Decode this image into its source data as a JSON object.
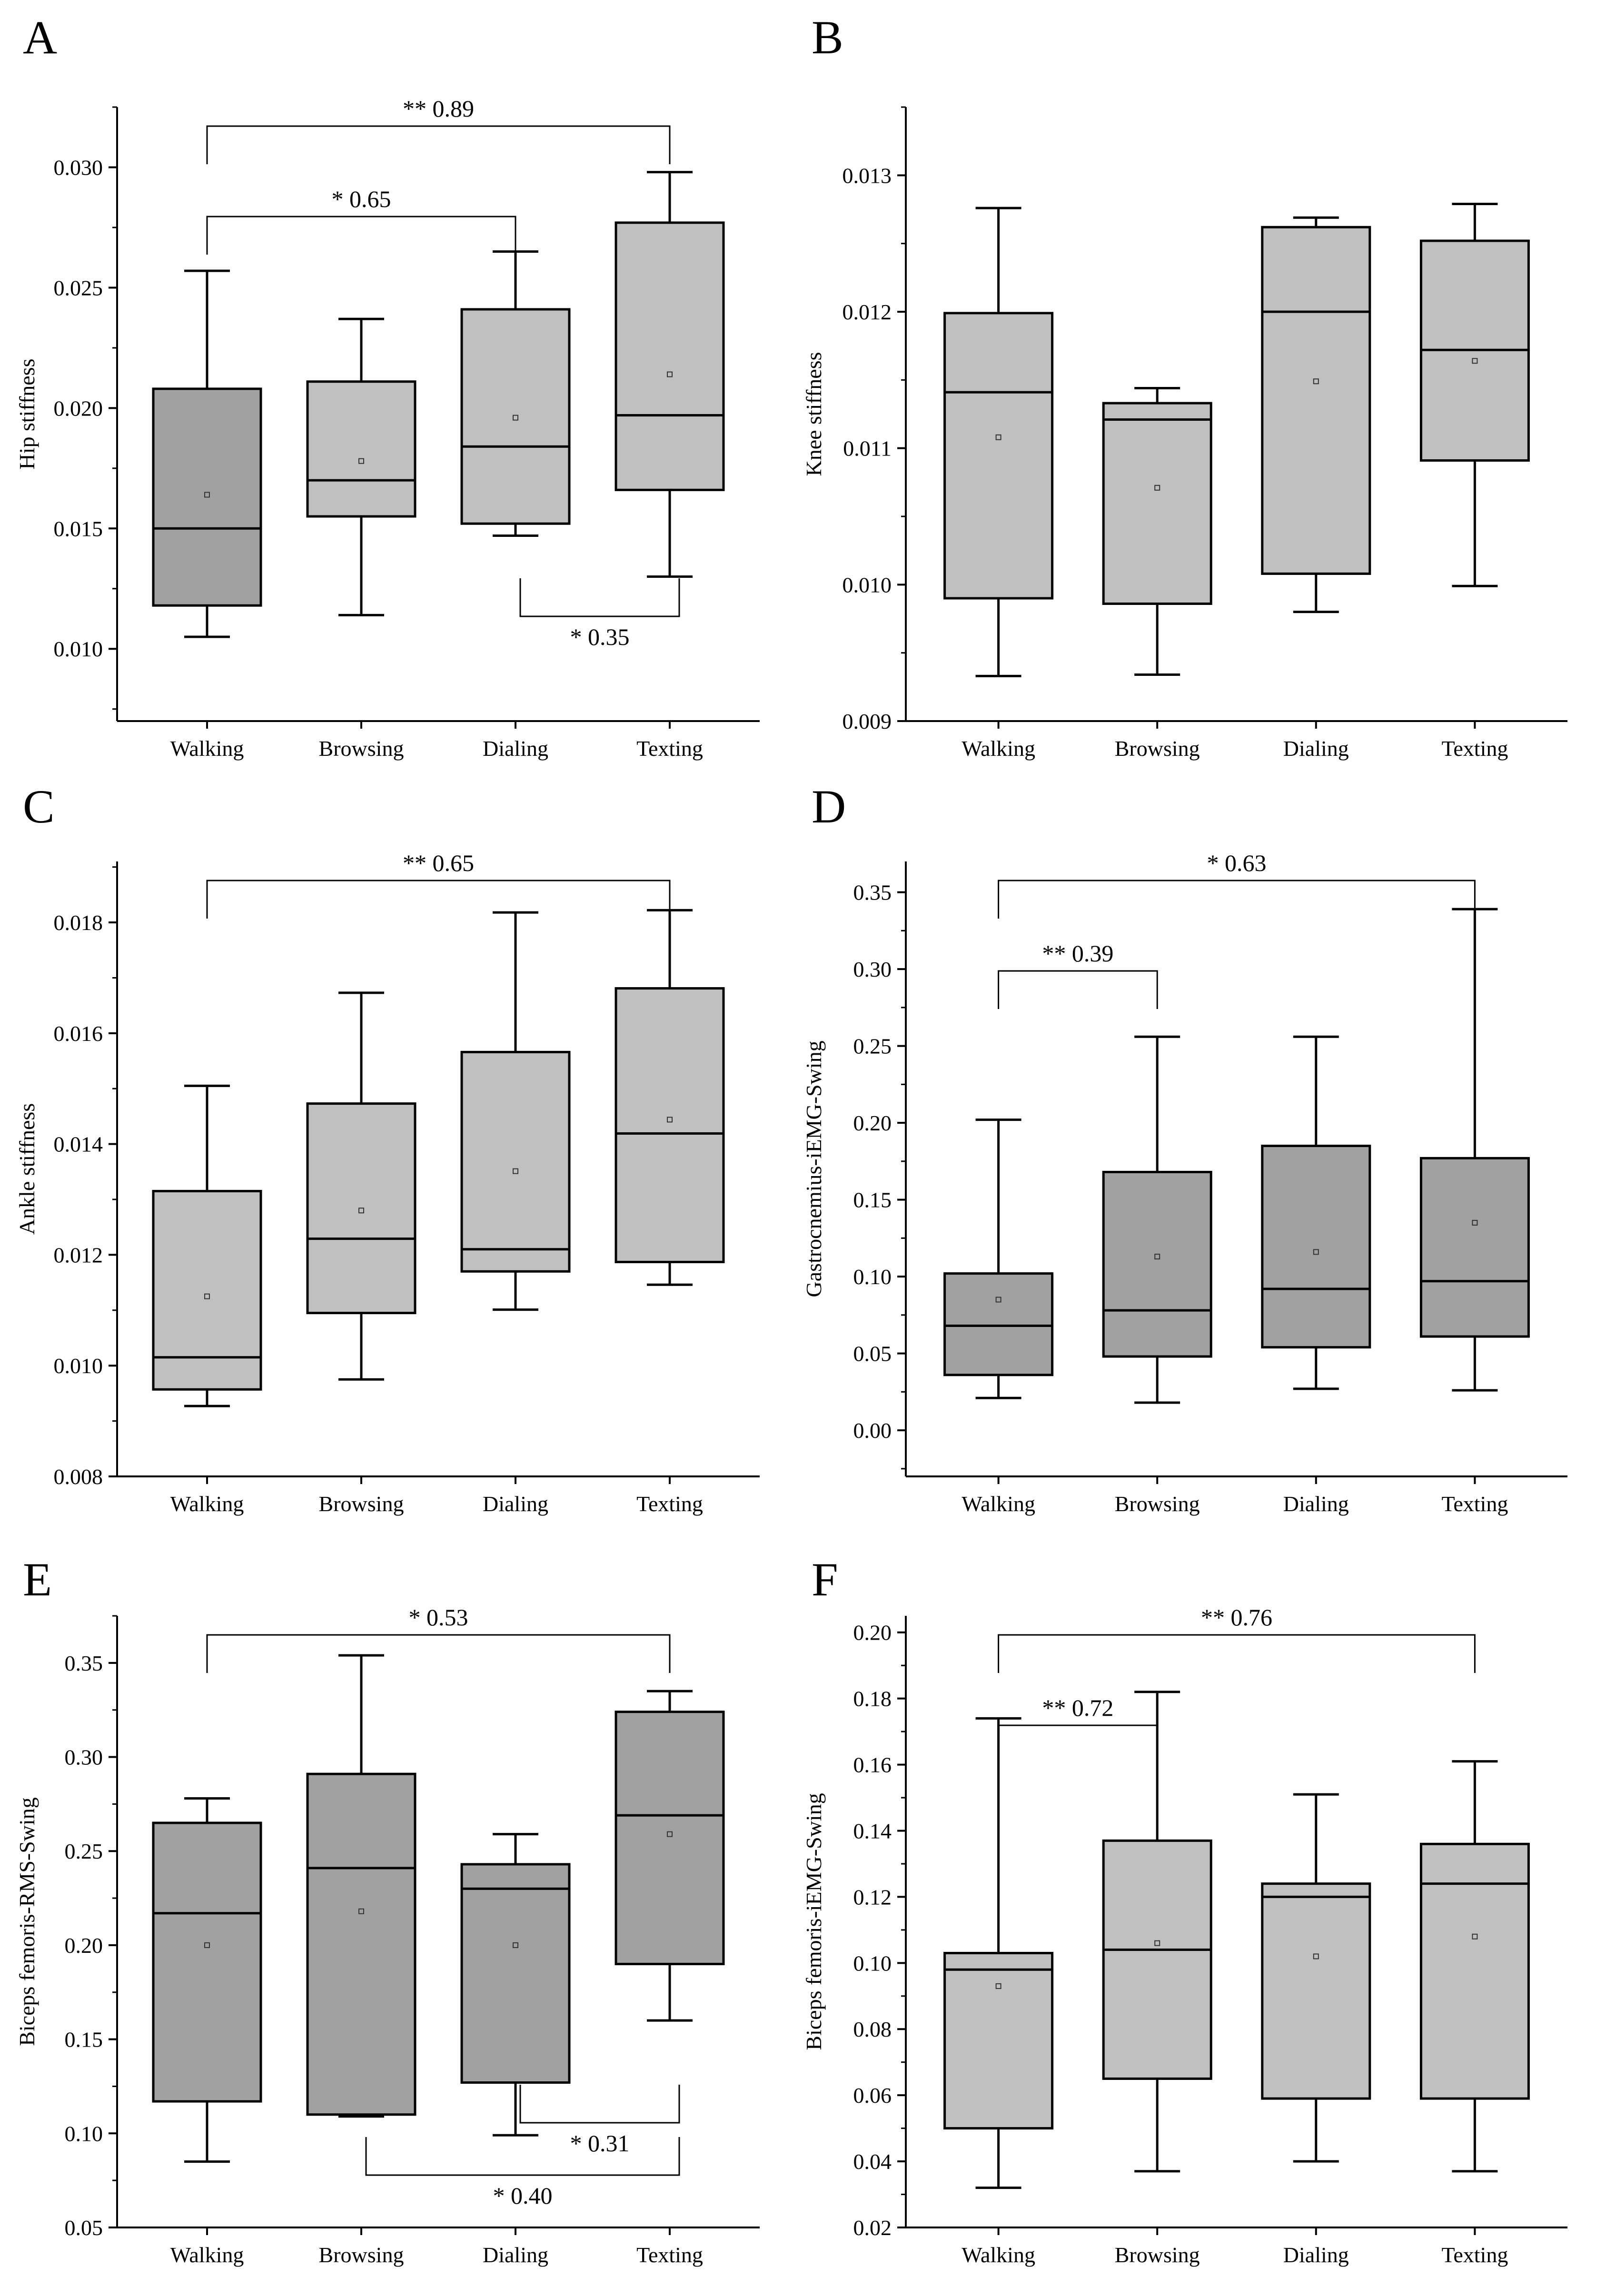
{
  "figure_title": "",
  "chart_data": [
    {
      "type": "box",
      "panel": "A",
      "title": "",
      "xlabel": "",
      "ylabel": "Hip stiffness",
      "categories": [
        "Walking",
        "Browsing",
        "Dialing",
        "Texting"
      ],
      "ylim": [
        0.007,
        0.0325
      ],
      "yticks": [
        0.01,
        0.015,
        0.02,
        0.025,
        0.03
      ],
      "ytick_labels": [
        "0.010",
        "0.015",
        "0.020",
        "0.025",
        "0.030"
      ],
      "box_colors": [
        "#a1a1a1",
        "#c0c0c0",
        "#c0c0c0",
        "#c0c0c0"
      ],
      "boxes": [
        {
          "category": "Walking",
          "whisker_low": 0.0105,
          "q1": 0.0118,
          "median": 0.015,
          "q3": 0.0208,
          "whisker_high": 0.0257,
          "mean": 0.0164
        },
        {
          "category": "Browsing",
          "whisker_low": 0.0114,
          "q1": 0.0155,
          "median": 0.017,
          "q3": 0.0211,
          "whisker_high": 0.0237,
          "mean": 0.0178
        },
        {
          "category": "Dialing",
          "whisker_low": 0.0147,
          "q1": 0.0152,
          "median": 0.0184,
          "q3": 0.0241,
          "whisker_high": 0.0265,
          "mean": 0.0196
        },
        {
          "category": "Texting",
          "whisker_low": 0.013,
          "q1": 0.0166,
          "median": 0.0197,
          "q3": 0.0277,
          "whisker_high": 0.0298,
          "mean": 0.0214
        }
      ],
      "annotations": [
        {
          "from": "Walking",
          "to": "Texting",
          "significance": "**",
          "effect": "0.89",
          "side": "top"
        },
        {
          "from": "Walking",
          "to": "Dialing",
          "significance": "*",
          "effect": "0.65",
          "side": "top"
        },
        {
          "from": "Dialing",
          "to": "Texting",
          "significance": "*",
          "effect": "0.35",
          "side": "bottom"
        }
      ]
    },
    {
      "type": "box",
      "panel": "B",
      "title": "",
      "xlabel": "",
      "ylabel": "Knee stiffness",
      "categories": [
        "Walking",
        "Browsing",
        "Dialing",
        "Texting"
      ],
      "ylim": [
        0.009,
        0.0135
      ],
      "yticks": [
        0.009,
        0.01,
        0.011,
        0.012,
        0.013
      ],
      "ytick_labels": [
        "0.009",
        "0.010",
        "0.011",
        "0.012",
        "0.013"
      ],
      "box_colors": [
        "#c0c0c0",
        "#c0c0c0",
        "#c0c0c0",
        "#c0c0c0"
      ],
      "boxes": [
        {
          "category": "Walking",
          "whisker_low": 0.00933,
          "q1": 0.0099,
          "median": 0.01141,
          "q3": 0.01199,
          "whisker_high": 0.01276,
          "mean": 0.01108
        },
        {
          "category": "Browsing",
          "whisker_low": 0.00934,
          "q1": 0.00986,
          "median": 0.01121,
          "q3": 0.01133,
          "whisker_high": 0.01144,
          "mean": 0.01071
        },
        {
          "category": "Dialing",
          "whisker_low": 0.0098,
          "q1": 0.01008,
          "median": 0.012,
          "q3": 0.01262,
          "whisker_high": 0.01269,
          "mean": 0.01149
        },
        {
          "category": "Texting",
          "whisker_low": 0.00999,
          "q1": 0.01091,
          "median": 0.01172,
          "q3": 0.01252,
          "whisker_high": 0.01279,
          "mean": 0.01164
        }
      ],
      "annotations": []
    },
    {
      "type": "box",
      "panel": "C",
      "title": "",
      "xlabel": "",
      "ylabel": "Ankle stiffness",
      "categories": [
        "Walking",
        "Browsing",
        "Dialing",
        "Texting"
      ],
      "ylim": [
        0.008,
        0.0191
      ],
      "yticks": [
        0.008,
        0.01,
        0.012,
        0.014,
        0.016,
        0.018
      ],
      "ytick_labels": [
        "0.008",
        "0.010",
        "0.012",
        "0.014",
        "0.016",
        "0.018"
      ],
      "box_colors": [
        "#c0c0c0",
        "#c0c0c0",
        "#c0c0c0",
        "#c0c0c0"
      ],
      "boxes": [
        {
          "category": "Walking",
          "whisker_low": 0.00927,
          "q1": 0.00957,
          "median": 0.01015,
          "q3": 0.01315,
          "whisker_high": 0.01505,
          "mean": 0.01125
        },
        {
          "category": "Browsing",
          "whisker_low": 0.00975,
          "q1": 0.01095,
          "median": 0.01229,
          "q3": 0.01473,
          "whisker_high": 0.01673,
          "mean": 0.0128
        },
        {
          "category": "Dialing",
          "whisker_low": 0.01101,
          "q1": 0.0117,
          "median": 0.0121,
          "q3": 0.01566,
          "whisker_high": 0.01818,
          "mean": 0.01351
        },
        {
          "category": "Texting",
          "whisker_low": 0.01146,
          "q1": 0.01187,
          "median": 0.01419,
          "q3": 0.01681,
          "whisker_high": 0.01822,
          "mean": 0.01444
        }
      ],
      "annotations": [
        {
          "from": "Walking",
          "to": "Texting",
          "significance": "**",
          "effect": "0.65",
          "side": "top"
        }
      ]
    },
    {
      "type": "box",
      "panel": "D",
      "title": "",
      "xlabel": "",
      "ylabel": "Gastrocnemius-iEMG-Swing",
      "categories": [
        "Walking",
        "Browsing",
        "Dialing",
        "Texting"
      ],
      "ylim": [
        -0.03,
        0.37
      ],
      "yticks": [
        0.0,
        0.05,
        0.1,
        0.15,
        0.2,
        0.25,
        0.3,
        0.35
      ],
      "ytick_labels": [
        "0.00",
        "0.05",
        "0.10",
        "0.15",
        "0.20",
        "0.25",
        "0.30",
        "0.35"
      ],
      "box_colors": [
        "#a1a1a1",
        "#a1a1a1",
        "#a1a1a1",
        "#a1a1a1"
      ],
      "boxes": [
        {
          "category": "Walking",
          "whisker_low": 0.021,
          "q1": 0.036,
          "median": 0.068,
          "q3": 0.102,
          "whisker_high": 0.202,
          "mean": 0.085
        },
        {
          "category": "Browsing",
          "whisker_low": 0.018,
          "q1": 0.048,
          "median": 0.078,
          "q3": 0.168,
          "whisker_high": 0.256,
          "mean": 0.113
        },
        {
          "category": "Dialing",
          "whisker_low": 0.027,
          "q1": 0.054,
          "median": 0.092,
          "q3": 0.185,
          "whisker_high": 0.256,
          "mean": 0.116
        },
        {
          "category": "Texting",
          "whisker_low": 0.026,
          "q1": 0.061,
          "median": 0.097,
          "q3": 0.177,
          "whisker_high": 0.339,
          "mean": 0.135
        }
      ],
      "annotations": [
        {
          "from": "Walking",
          "to": "Texting",
          "significance": "*",
          "effect": "0.63",
          "side": "top"
        },
        {
          "from": "Walking",
          "to": "Browsing",
          "significance": "**",
          "effect": "0.39",
          "side": "top"
        }
      ]
    },
    {
      "type": "box",
      "panel": "E",
      "title": "",
      "xlabel": "",
      "ylabel": "Biceps femoris-RMS-Swing",
      "categories": [
        "Walking",
        "Browsing",
        "Dialing",
        "Texting"
      ],
      "ylim": [
        0.05,
        0.375
      ],
      "yticks": [
        0.05,
        0.1,
        0.15,
        0.2,
        0.25,
        0.3,
        0.35
      ],
      "ytick_labels": [
        "0.05",
        "0.10",
        "0.15",
        "0.20",
        "0.25",
        "0.30",
        "0.35"
      ],
      "box_colors": [
        "#a1a1a1",
        "#a1a1a1",
        "#a1a1a1",
        "#a1a1a1"
      ],
      "boxes": [
        {
          "category": "Walking",
          "whisker_low": 0.085,
          "q1": 0.117,
          "median": 0.217,
          "q3": 0.265,
          "whisker_high": 0.278,
          "mean": 0.2
        },
        {
          "category": "Browsing",
          "whisker_low": 0.109,
          "q1": 0.11,
          "median": 0.241,
          "q3": 0.291,
          "whisker_high": 0.354,
          "mean": 0.218
        },
        {
          "category": "Dialing",
          "whisker_low": 0.099,
          "q1": 0.127,
          "median": 0.23,
          "q3": 0.243,
          "whisker_high": 0.259,
          "mean": 0.2
        },
        {
          "category": "Texting",
          "whisker_low": 0.16,
          "q1": 0.19,
          "median": 0.269,
          "q3": 0.324,
          "whisker_high": 0.335,
          "mean": 0.259
        }
      ],
      "annotations": [
        {
          "from": "Walking",
          "to": "Texting",
          "significance": "*",
          "effect": "0.53",
          "side": "top"
        },
        {
          "from": "Dialing",
          "to": "Texting",
          "significance": "*",
          "effect": "0.31",
          "side": "bottom"
        },
        {
          "from": "Browsing",
          "to": "Texting",
          "significance": "*",
          "effect": "0.40",
          "side": "bottom"
        }
      ]
    },
    {
      "type": "box",
      "panel": "F",
      "title": "",
      "xlabel": "",
      "ylabel": "Biceps femoris-iEMG-Swing",
      "categories": [
        "Walking",
        "Browsing",
        "Dialing",
        "Texting"
      ],
      "ylim": [
        0.02,
        0.205
      ],
      "yticks": [
        0.02,
        0.04,
        0.06,
        0.08,
        0.1,
        0.12,
        0.14,
        0.16,
        0.18,
        0.2
      ],
      "ytick_labels": [
        "0.02",
        "0.04",
        "0.06",
        "0.08",
        "0.10",
        "0.12",
        "0.14",
        "0.16",
        "0.18",
        "0.20"
      ],
      "box_colors": [
        "#c0c0c0",
        "#c0c0c0",
        "#c0c0c0",
        "#c0c0c0"
      ],
      "boxes": [
        {
          "category": "Walking",
          "whisker_low": 0.032,
          "q1": 0.05,
          "median": 0.098,
          "q3": 0.103,
          "whisker_high": 0.174,
          "mean": 0.093
        },
        {
          "category": "Browsing",
          "whisker_low": 0.037,
          "q1": 0.065,
          "median": 0.104,
          "q3": 0.137,
          "whisker_high": 0.182,
          "mean": 0.106
        },
        {
          "category": "Dialing",
          "whisker_low": 0.04,
          "q1": 0.059,
          "median": 0.12,
          "q3": 0.124,
          "whisker_high": 0.151,
          "mean": 0.102
        },
        {
          "category": "Texting",
          "whisker_low": 0.037,
          "q1": 0.059,
          "median": 0.124,
          "q3": 0.136,
          "whisker_high": 0.161,
          "mean": 0.108
        }
      ],
      "annotations": [
        {
          "from": "Walking",
          "to": "Texting",
          "significance": "**",
          "effect": "0.76",
          "side": "top"
        },
        {
          "from": "Walking",
          "to": "Browsing",
          "significance": "**",
          "effect": "0.72",
          "side": "top"
        }
      ]
    }
  ]
}
